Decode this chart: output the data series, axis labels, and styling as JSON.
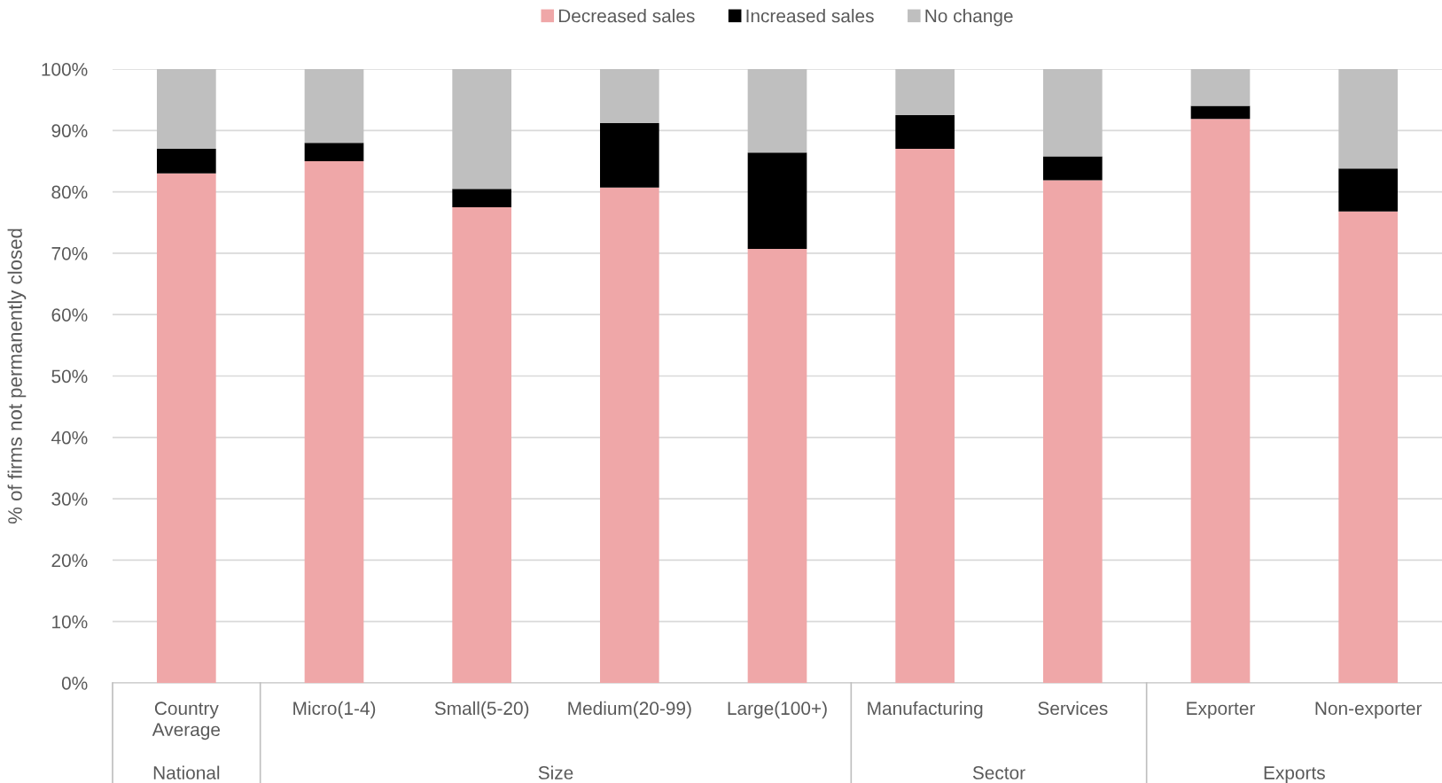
{
  "chart_data": {
    "type": "bar",
    "stacked": true,
    "ylabel": "% of firms not permanently closed",
    "categories": [
      "Country\nAverage",
      "Micro(1-4)",
      "Small(5-20)",
      "Medium(20-99)",
      "Large(100+)",
      "Manufacturing",
      "Services",
      "Exporter",
      "Non-exporter"
    ],
    "series": [
      {
        "name": "Decreased sales",
        "color": "#efa7a8",
        "values": [
          83,
          85,
          77.5,
          80.7,
          70.7,
          87,
          81.9,
          91.9,
          76.8
        ]
      },
      {
        "name": "Increased sales",
        "color": "#000000",
        "values": [
          4,
          3,
          3,
          10.5,
          15.7,
          5.5,
          3.9,
          2.1,
          7
        ]
      },
      {
        "name": "No change",
        "color": "#bfbfbf",
        "values": [
          13,
          12,
          19.5,
          8.8,
          13.6,
          7.5,
          14.2,
          6,
          16.2
        ]
      }
    ],
    "ylim": [
      0,
      100
    ],
    "yticks": [
      {
        "value": 0,
        "label": "0%"
      },
      {
        "value": 10,
        "label": "10%"
      },
      {
        "value": 20,
        "label": "20%"
      },
      {
        "value": 30,
        "label": "30%"
      },
      {
        "value": 40,
        "label": "40%"
      },
      {
        "value": 50,
        "label": "50%"
      },
      {
        "value": 60,
        "label": "60%"
      },
      {
        "value": 70,
        "label": "70%"
      },
      {
        "value": 80,
        "label": "80%"
      },
      {
        "value": 90,
        "label": "90%"
      },
      {
        "value": 100,
        "label": "100%"
      }
    ],
    "annotations": [
      "National",
      "Size",
      "Sector",
      "Exports"
    ],
    "grid": "y",
    "legend": "top"
  }
}
